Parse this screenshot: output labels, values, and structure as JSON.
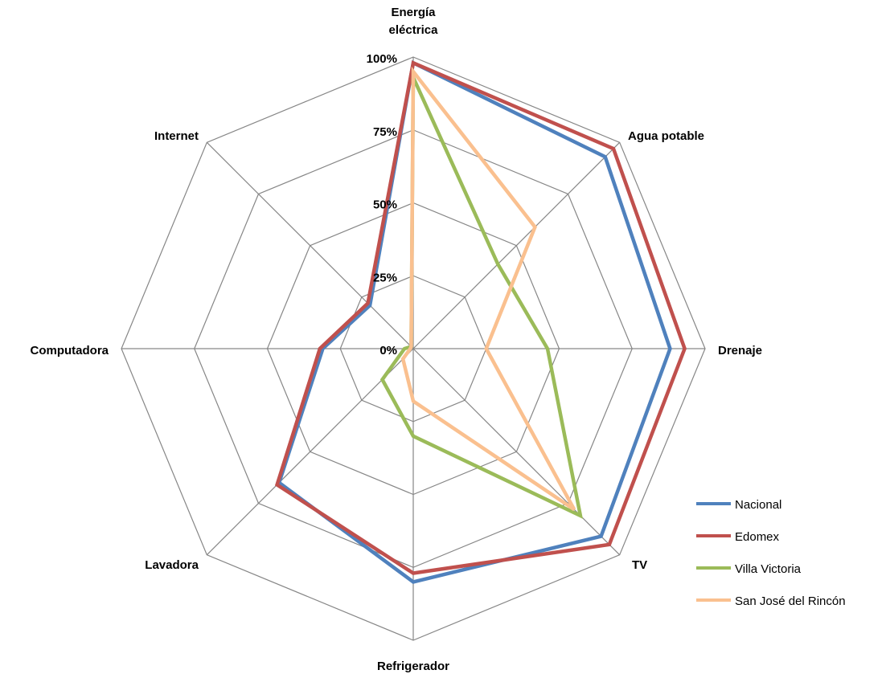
{
  "chart_data": {
    "type": "radar",
    "categories": [
      "Energía eléctrica",
      "Agua potable",
      "Drenaje",
      "TV",
      "Refrigerador",
      "Lavadora",
      "Computadora",
      "Internet"
    ],
    "category_label_lines": [
      [
        "Energía",
        "eléctrica"
      ],
      [
        "Agua potable"
      ],
      [
        "Drenaje"
      ],
      [
        "TV"
      ],
      [
        "Refrigerador"
      ],
      [
        "Lavadora"
      ],
      [
        "Computadora"
      ],
      [
        "Internet"
      ]
    ],
    "r_ticks": [
      "0%",
      "25%",
      "50%",
      "75%",
      "100%"
    ],
    "r_range": [
      0,
      100
    ],
    "grid": true,
    "legend_position": "bottom-right",
    "series": [
      {
        "name": "Nacional",
        "color": "#4F81BD",
        "values": [
          98,
          93,
          88,
          91,
          80,
          65,
          31,
          21
        ]
      },
      {
        "name": "Edomex",
        "color": "#C0504D",
        "values": [
          98,
          97,
          93,
          95,
          77,
          66,
          32,
          22
        ]
      },
      {
        "name": "Villa Victoria",
        "color": "#9BBB59",
        "values": [
          93,
          41,
          46,
          81,
          30,
          15,
          3,
          1
        ]
      },
      {
        "name": "San José del Rincón",
        "color": "#FAC08F",
        "values": [
          95,
          59,
          25,
          78,
          18,
          5,
          1,
          1
        ]
      }
    ]
  }
}
